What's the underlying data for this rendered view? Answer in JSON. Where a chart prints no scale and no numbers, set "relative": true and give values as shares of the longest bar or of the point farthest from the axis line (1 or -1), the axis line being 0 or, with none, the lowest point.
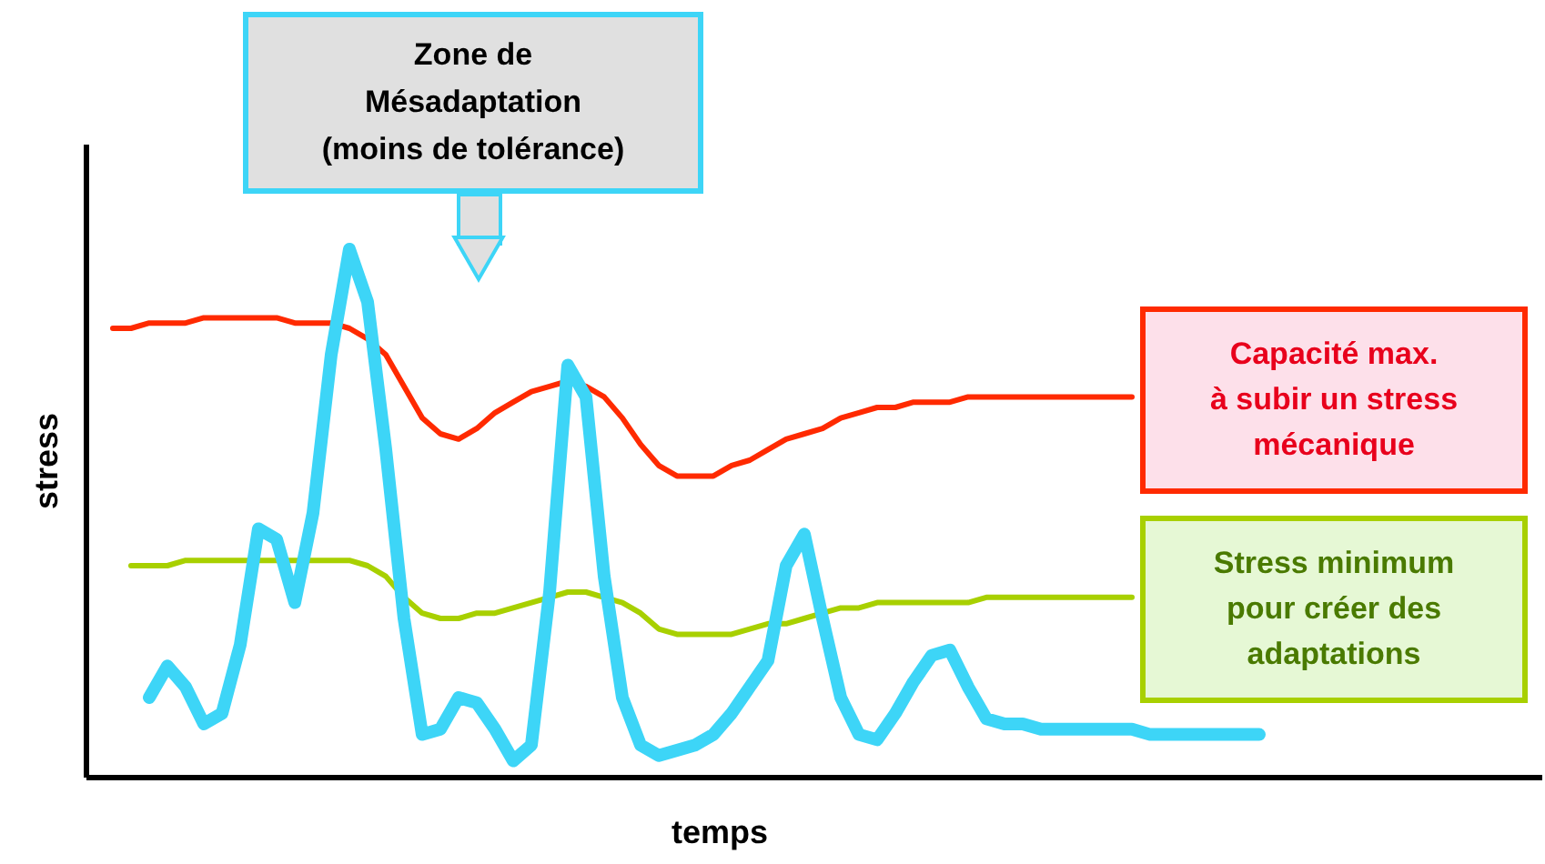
{
  "chart_data": {
    "type": "line",
    "relative": true,
    "xlabel": "temps",
    "ylabel": "stress",
    "tick_labels": false,
    "grid": false,
    "annotations": [
      "Zone de\nMésadaptation\n(moins de tolérance)"
    ],
    "categories": [
      null,
      null,
      null,
      null,
      null,
      null,
      null,
      null,
      null,
      null,
      null,
      null,
      null,
      null,
      null,
      null,
      null,
      null,
      null,
      null,
      null,
      null,
      null,
      null,
      null,
      null,
      null,
      null,
      null,
      null,
      null,
      null,
      null,
      null,
      null,
      null,
      null,
      null,
      null,
      null,
      null,
      null,
      null,
      null,
      null,
      null,
      null,
      null,
      null,
      null,
      null,
      null,
      null,
      null,
      null,
      null,
      null,
      null,
      null,
      null,
      null,
      null,
      null,
      null
    ],
    "series": [
      {
        "name": "Capacité max.\nà subir un stress\nmécanique",
        "color": "#ff2a00",
        "values": [
          0.85,
          0.85,
          0.86,
          0.86,
          0.86,
          0.87,
          0.87,
          0.87,
          0.87,
          0.87,
          0.86,
          0.86,
          0.86,
          0.85,
          0.83,
          0.8,
          0.74,
          0.68,
          0.65,
          0.64,
          0.66,
          0.69,
          0.71,
          0.73,
          0.74,
          0.75,
          0.74,
          0.72,
          0.68,
          0.63,
          0.59,
          0.57,
          0.57,
          0.57,
          0.59,
          0.6,
          0.62,
          0.64,
          0.65,
          0.66,
          0.68,
          0.69,
          0.7,
          0.7,
          0.71,
          0.71,
          0.71,
          0.72,
          0.72,
          0.72,
          0.72,
          0.72,
          0.72,
          0.72,
          0.72,
          0.72,
          0.72,
          null,
          null,
          null,
          null,
          null,
          null,
          null
        ]
      },
      {
        "name": "Stress minimum\npour créer des\nadaptations",
        "color": "#a8d000",
        "values": [
          null,
          0.4,
          0.4,
          0.4,
          0.41,
          0.41,
          0.41,
          0.41,
          0.41,
          0.41,
          0.41,
          0.41,
          0.41,
          0.41,
          0.4,
          0.38,
          0.34,
          0.31,
          0.3,
          0.3,
          0.31,
          0.31,
          0.32,
          0.33,
          0.34,
          0.35,
          0.35,
          0.34,
          0.33,
          0.31,
          0.28,
          0.27,
          0.27,
          0.27,
          0.27,
          0.28,
          0.29,
          0.29,
          0.3,
          0.31,
          0.32,
          0.32,
          0.33,
          0.33,
          0.33,
          0.33,
          0.33,
          0.33,
          0.34,
          0.34,
          0.34,
          0.34,
          0.34,
          0.34,
          0.34,
          0.34,
          0.34,
          null,
          null,
          null,
          null,
          null,
          null,
          null
        ]
      },
      {
        "color": "#3dd5f7",
        "values": [
          null,
          null,
          0.15,
          0.21,
          0.17,
          0.1,
          0.12,
          0.25,
          0.47,
          0.45,
          0.33,
          0.5,
          0.8,
          1.0,
          0.9,
          0.62,
          0.3,
          0.08,
          0.09,
          0.15,
          0.14,
          0.09,
          0.03,
          0.06,
          0.35,
          0.78,
          0.72,
          0.38,
          0.15,
          0.06,
          0.04,
          0.05,
          0.06,
          0.08,
          0.12,
          0.17,
          0.22,
          0.4,
          0.46,
          0.3,
          0.15,
          0.08,
          0.07,
          0.12,
          0.18,
          0.23,
          0.24,
          0.17,
          0.11,
          0.1,
          0.1,
          0.09,
          0.09,
          0.09,
          0.09,
          0.09,
          0.09,
          0.08,
          0.08,
          0.08,
          0.08,
          0.08,
          0.08,
          0.08
        ]
      }
    ]
  }
}
